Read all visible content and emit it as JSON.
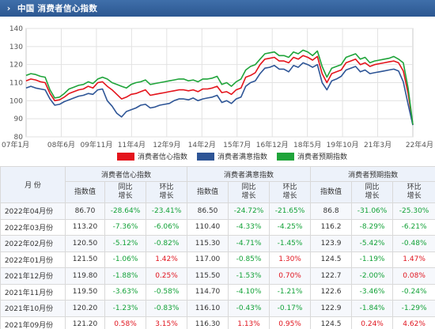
{
  "header": {
    "title": "中国 消费者信心指数"
  },
  "chart_data": {
    "type": "line",
    "ylim": [
      80,
      140
    ],
    "yticks": [
      80,
      90,
      100,
      110,
      120,
      130,
      140
    ],
    "xtick_labels": [
      "07年1月",
      "08年6月",
      "09年11月",
      "11年4月",
      "12年9月",
      "14年2月",
      "15年7月",
      "16年12月",
      "18年5月",
      "19年10月",
      "21年3月",
      "22年4月"
    ],
    "series": [
      {
        "name": "消费者信心指数",
        "color": "#e4141c",
        "values": [
          111,
          112,
          111.5,
          110.5,
          110,
          104,
          100,
          100.5,
          102,
          104,
          105,
          106,
          106.5,
          108,
          107,
          110,
          110.5,
          108,
          106,
          103.5,
          101,
          102,
          103.5,
          104,
          105,
          106,
          103,
          103.5,
          104,
          104.5,
          105,
          105.5,
          106,
          106,
          105.5,
          106,
          105,
          106.5,
          106.5,
          107,
          108,
          104.5,
          105,
          103.5,
          106,
          107,
          113,
          114,
          115.5,
          120,
          123,
          123.5,
          124,
          122,
          122,
          121,
          124,
          123,
          125,
          124,
          122.5,
          124.5,
          115,
          110,
          115,
          116,
          117,
          121,
          122,
          123,
          120,
          121,
          119,
          120,
          120.5,
          121,
          121.5,
          122,
          121,
          116.5,
          104,
          86.7
        ]
      },
      {
        "name": "消费者满意指数",
        "color": "#2e5596",
        "values": [
          107,
          108,
          107,
          106.5,
          106,
          101,
          97.5,
          98,
          99.5,
          100.5,
          101.5,
          102.5,
          103,
          104,
          103.5,
          106,
          106.5,
          100,
          97,
          93,
          91,
          94,
          95,
          96,
          97.5,
          98,
          96,
          96.5,
          97.5,
          98,
          98.5,
          100,
          101,
          101,
          100.5,
          101.5,
          100,
          101,
          101.5,
          102,
          103,
          99,
          100,
          98.5,
          101,
          102,
          108,
          110,
          111,
          115,
          118,
          118.5,
          119.5,
          117.5,
          117.5,
          116,
          119.5,
          118.5,
          121,
          120,
          118.5,
          120,
          110,
          106,
          111,
          112,
          113.5,
          117,
          118,
          119,
          116,
          117,
          115,
          115.5,
          116,
          116.5,
          117,
          117.5,
          116.5,
          110.5,
          98,
          86.5
        ]
      },
      {
        "name": "消费者预期指数",
        "color": "#1fa43a",
        "values": [
          114,
          115,
          114.5,
          113.5,
          113,
          106,
          101.5,
          102,
          104,
          106.5,
          107.5,
          108.5,
          109,
          110.5,
          109.5,
          112,
          113,
          112,
          110,
          109,
          108,
          107,
          109,
          110,
          110.5,
          111.5,
          109,
          109.5,
          110,
          110.5,
          111,
          111.5,
          112,
          112,
          111,
          111.5,
          110.5,
          112,
          112,
          112.5,
          113.5,
          109,
          110,
          108,
          110.5,
          112,
          117,
          119,
          120,
          123,
          126,
          126.5,
          127,
          125,
          125,
          124,
          127,
          126,
          128,
          127,
          125,
          127.5,
          119,
          113,
          118,
          119,
          120,
          124,
          125,
          126,
          123,
          124,
          121,
          122,
          122.5,
          123,
          123.5,
          124.5,
          123,
          121,
          107,
          86.8
        ]
      }
    ]
  },
  "table": {
    "month_header": "月  份",
    "groups": [
      "消费者信心指数",
      "消费者满意指数",
      "消费者预期指数"
    ],
    "sub_headers": [
      "指数值",
      "同比\n增长",
      "环比\n增长"
    ],
    "rows": [
      {
        "month": "2022年04月份",
        "cells": [
          [
            "86.70",
            "plain"
          ],
          [
            "-28.64%",
            "down"
          ],
          [
            "-23.41%",
            "down"
          ],
          [
            "86.50",
            "plain"
          ],
          [
            "-24.72%",
            "down"
          ],
          [
            "-21.65%",
            "down"
          ],
          [
            "86.8",
            "plain"
          ],
          [
            "-31.06%",
            "down"
          ],
          [
            "-25.30%",
            "down"
          ]
        ]
      },
      {
        "month": "2022年03月份",
        "cells": [
          [
            "113.20",
            "plain"
          ],
          [
            "-7.36%",
            "down"
          ],
          [
            "-6.06%",
            "down"
          ],
          [
            "110.40",
            "plain"
          ],
          [
            "-4.33%",
            "down"
          ],
          [
            "-4.25%",
            "down"
          ],
          [
            "116.2",
            "plain"
          ],
          [
            "-8.29%",
            "down"
          ],
          [
            "-6.21%",
            "down"
          ]
        ]
      },
      {
        "month": "2022年02月份",
        "cells": [
          [
            "120.50",
            "plain"
          ],
          [
            "-5.12%",
            "down"
          ],
          [
            "-0.82%",
            "down"
          ],
          [
            "115.30",
            "plain"
          ],
          [
            "-4.71%",
            "down"
          ],
          [
            "-1.45%",
            "down"
          ],
          [
            "123.9",
            "plain"
          ],
          [
            "-5.42%",
            "down"
          ],
          [
            "-0.48%",
            "down"
          ]
        ]
      },
      {
        "month": "2022年01月份",
        "cells": [
          [
            "121.50",
            "plain"
          ],
          [
            "-1.06%",
            "down"
          ],
          [
            "1.42%",
            "up"
          ],
          [
            "117.00",
            "plain"
          ],
          [
            "-0.85%",
            "down"
          ],
          [
            "1.30%",
            "up"
          ],
          [
            "124.5",
            "plain"
          ],
          [
            "-1.19%",
            "down"
          ],
          [
            "1.47%",
            "up"
          ]
        ]
      },
      {
        "month": "2021年12月份",
        "cells": [
          [
            "119.80",
            "plain"
          ],
          [
            "-1.88%",
            "down"
          ],
          [
            "0.25%",
            "up"
          ],
          [
            "115.50",
            "plain"
          ],
          [
            "-1.53%",
            "down"
          ],
          [
            "0.70%",
            "up"
          ],
          [
            "122.7",
            "plain"
          ],
          [
            "-2.00%",
            "down"
          ],
          [
            "0.08%",
            "up"
          ]
        ]
      },
      {
        "month": "2021年11月份",
        "cells": [
          [
            "119.50",
            "plain"
          ],
          [
            "-3.63%",
            "down"
          ],
          [
            "-0.58%",
            "down"
          ],
          [
            "114.70",
            "plain"
          ],
          [
            "-4.10%",
            "down"
          ],
          [
            "-1.21%",
            "down"
          ],
          [
            "122.6",
            "plain"
          ],
          [
            "-3.46%",
            "down"
          ],
          [
            "-0.24%",
            "down"
          ]
        ]
      },
      {
        "month": "2021年10月份",
        "cells": [
          [
            "120.20",
            "plain"
          ],
          [
            "-1.23%",
            "down"
          ],
          [
            "-0.83%",
            "down"
          ],
          [
            "116.10",
            "plain"
          ],
          [
            "-0.43%",
            "down"
          ],
          [
            "-0.17%",
            "down"
          ],
          [
            "122.9",
            "plain"
          ],
          [
            "-1.84%",
            "down"
          ],
          [
            "-1.29%",
            "down"
          ]
        ]
      },
      {
        "month": "2021年09月份",
        "cells": [
          [
            "121.20",
            "plain"
          ],
          [
            "0.58%",
            "up"
          ],
          [
            "3.15%",
            "up"
          ],
          [
            "116.30",
            "plain"
          ],
          [
            "1.13%",
            "up"
          ],
          [
            "0.95%",
            "up"
          ],
          [
            "124.5",
            "plain"
          ],
          [
            "0.24%",
            "up"
          ],
          [
            "4.62%",
            "up"
          ]
        ]
      }
    ]
  }
}
